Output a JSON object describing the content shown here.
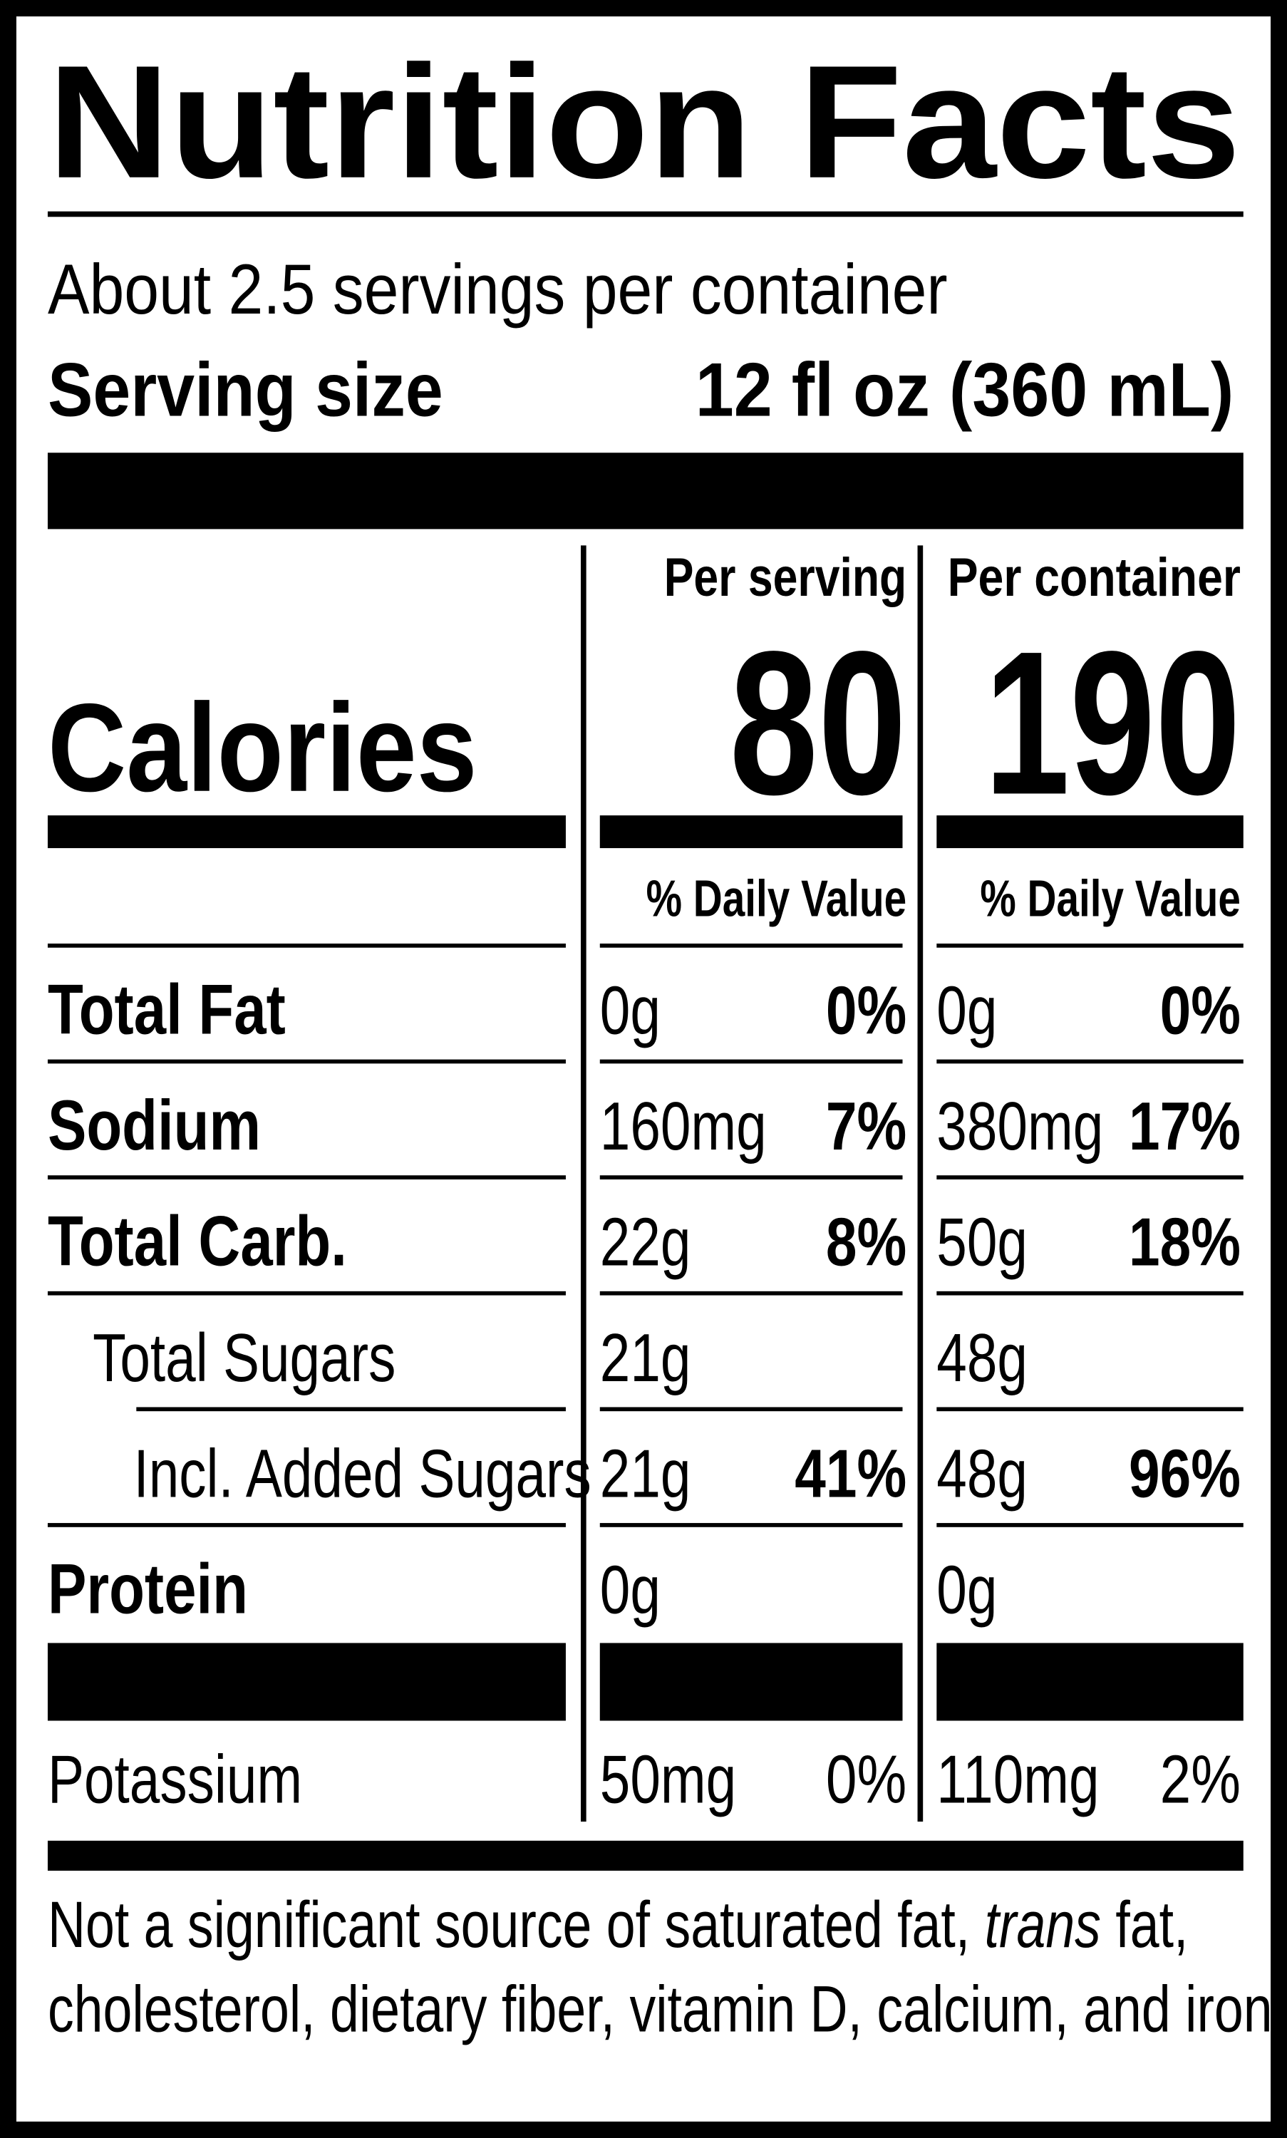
{
  "header": {
    "title": "Nutrition Facts",
    "servings": "About 2.5 servings per container",
    "serving_size_label": "Serving size",
    "serving_size_value": "12 fl oz (360 mL)"
  },
  "columns": {
    "per_serving": "Per serving",
    "per_container": "Per container"
  },
  "calories": {
    "label": "Calories",
    "per_serving": 80,
    "per_container": 190
  },
  "dv_heading": "% Daily Value",
  "nutrients": [
    {
      "name": "Total Fat",
      "style": "bold",
      "serving": {
        "amount": "0g",
        "dv": "0%"
      },
      "container": {
        "amount": "0g",
        "dv": "0%"
      }
    },
    {
      "name": "Sodium",
      "style": "bold",
      "serving": {
        "amount": "160mg",
        "dv": "7%"
      },
      "container": {
        "amount": "380mg",
        "dv": "17%"
      }
    },
    {
      "name": "Total Carb.",
      "style": "bold",
      "serving": {
        "amount": "22g",
        "dv": "8%"
      },
      "container": {
        "amount": "50g",
        "dv": "18%"
      }
    },
    {
      "name": "Total Sugars",
      "style": "indent1",
      "serving": {
        "amount": "21g"
      },
      "container": {
        "amount": "48g"
      }
    },
    {
      "name": "Incl. Added Sugars",
      "style": "indent2",
      "serving": {
        "amount": "21g",
        "dv": "41%"
      },
      "container": {
        "amount": "48g",
        "dv": "96%"
      }
    },
    {
      "name": "Protein",
      "style": "bold",
      "serving": {
        "amount": "0g"
      },
      "container": {
        "amount": "0g"
      }
    }
  ],
  "minerals": [
    {
      "name": "Potassium",
      "serving": {
        "amount": "50mg",
        "dv": "0%"
      },
      "container": {
        "amount": "110mg",
        "dv": "2%"
      }
    }
  ],
  "footnote": [
    [
      {
        "text": "Not a significant source of saturated fat, "
      },
      {
        "text": "trans",
        "italic": true
      },
      {
        "text": " fat,"
      }
    ],
    [
      {
        "text": "cholesterol, dietary fiber, vitamin D, calcium, and iron."
      }
    ]
  ]
}
